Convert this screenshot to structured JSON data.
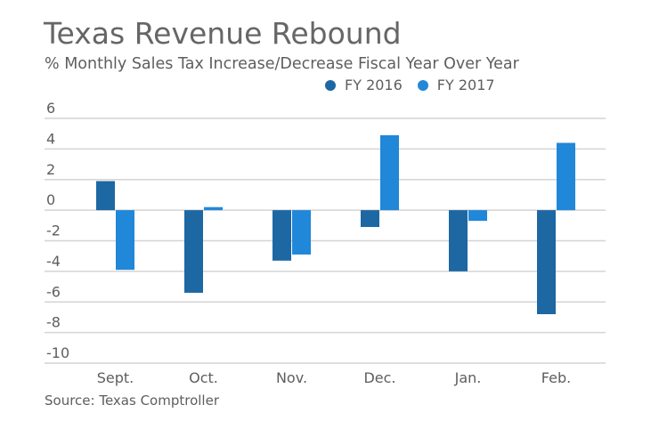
{
  "chart_data": {
    "type": "bar",
    "title": "Texas Revenue Rebound",
    "subtitle": "% Monthly Sales Tax Increase/Decrease Fiscal Year Over Year",
    "xlabel": "",
    "ylabel": "",
    "categories": [
      "Sept.",
      "Oct.",
      "Nov.",
      "Dec.",
      "Jan.",
      "Feb."
    ],
    "series": [
      {
        "name": "FY 2016",
        "color": "#1d67a3",
        "values": [
          1.9,
          -5.4,
          -3.3,
          -1.1,
          -4.0,
          -6.8
        ]
      },
      {
        "name": "FY 2017",
        "color": "#2187d8",
        "values": [
          -3.9,
          0.2,
          -2.9,
          4.9,
          -0.7,
          4.4
        ]
      }
    ],
    "ylim": [
      -10,
      6
    ],
    "yticks": [
      6,
      4,
      2,
      0,
      -2,
      -4,
      -6,
      -8,
      -10
    ],
    "grid": true,
    "legend_position": "top-right",
    "source": "Source: Texas Comptroller"
  }
}
